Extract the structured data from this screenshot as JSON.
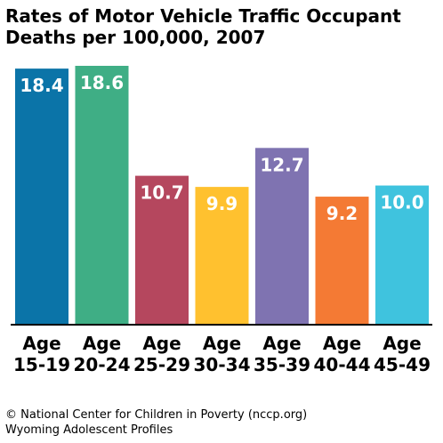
{
  "chart_data": {
    "type": "bar",
    "title_lines": [
      "Rates of Motor Vehicle Traffic Occupant",
      "Deaths per 100,000, 2007"
    ],
    "categories": [
      [
        "Age",
        "15-19"
      ],
      [
        "Age",
        "20-24"
      ],
      [
        "Age",
        "25-29"
      ],
      [
        "Age",
        "30-34"
      ],
      [
        "Age",
        "35-39"
      ],
      [
        "Age",
        "40-44"
      ],
      [
        "Age",
        "45-49"
      ]
    ],
    "values": [
      18.4,
      18.6,
      10.7,
      9.9,
      12.7,
      9.2,
      10.0
    ],
    "value_labels": [
      "18.4",
      "18.6",
      "10.7",
      "9.9",
      "12.7",
      "9.2",
      "10.0"
    ],
    "colors": [
      "#0B74A8",
      "#3FAE85",
      "#B5475E",
      "#FFC12F",
      "#7F73B1",
      "#F47A34",
      "#3FC3DE"
    ],
    "ylim": [
      0,
      18.6
    ],
    "grid": false,
    "legend": "none"
  },
  "footer": {
    "line1": "© National Center for Children in Poverty (nccp.org)",
    "line2": "Wyoming Adolescent Profiles"
  }
}
